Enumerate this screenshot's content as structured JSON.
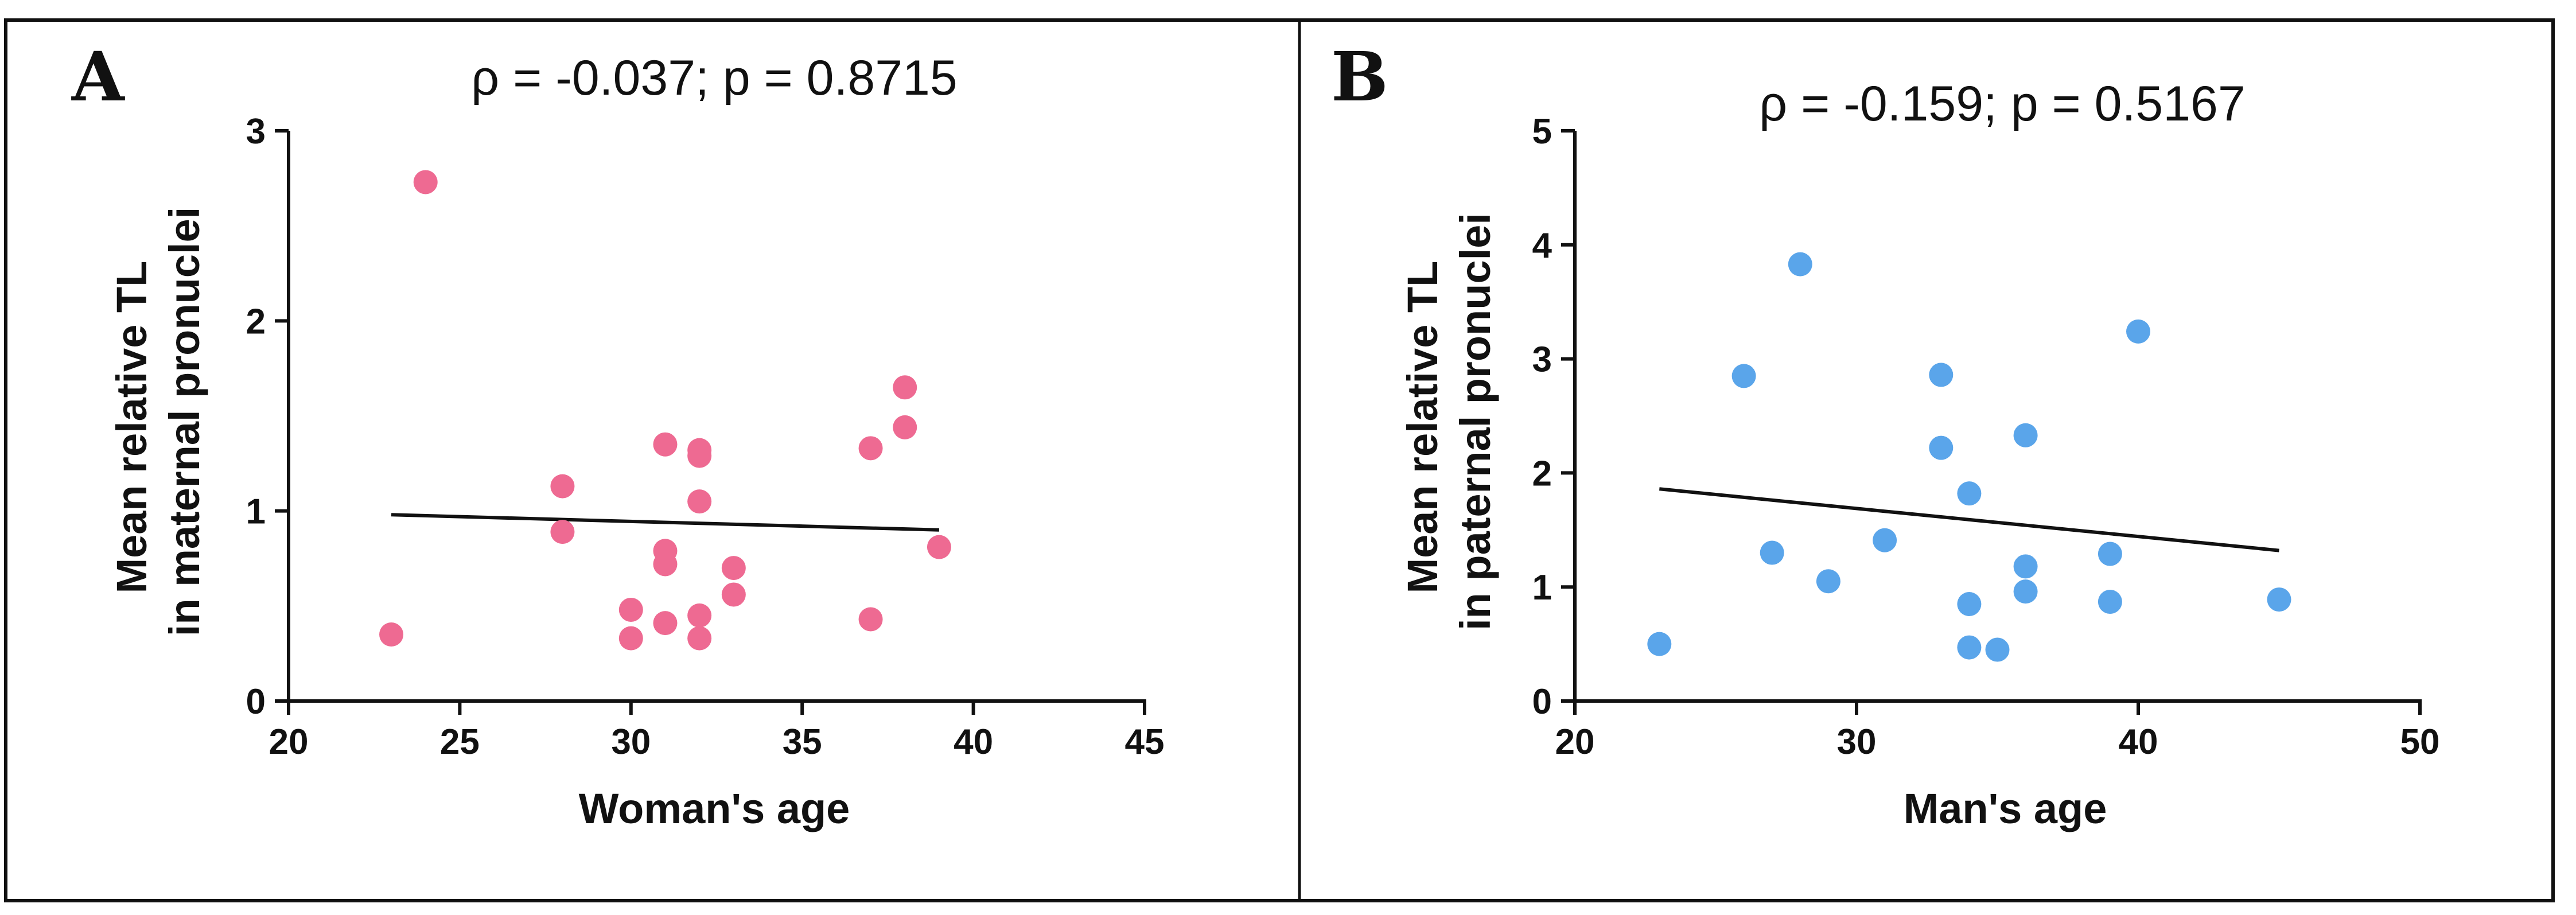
{
  "chart_data": [
    {
      "panel": "A",
      "type": "scatter",
      "title": "ρ = -0.037; p = 0.8715",
      "xlabel": "Woman's age",
      "ylabel": [
        "Mean relative TL",
        "in maternal pronuclei"
      ],
      "xlim": [
        20,
        45
      ],
      "ylim": [
        0,
        3
      ],
      "xticks": [
        20,
        25,
        30,
        35,
        40,
        45
      ],
      "yticks": [
        0,
        1,
        2,
        3
      ],
      "point_color": "#ee6a92",
      "line_color": "#111111",
      "points": [
        {
          "x": 23,
          "y": 0.35
        },
        {
          "x": 24,
          "y": 2.73
        },
        {
          "x": 28,
          "y": 1.13
        },
        {
          "x": 28,
          "y": 0.89
        },
        {
          "x": 30,
          "y": 0.48
        },
        {
          "x": 30,
          "y": 0.33
        },
        {
          "x": 31,
          "y": 1.35
        },
        {
          "x": 31,
          "y": 0.79
        },
        {
          "x": 31,
          "y": 0.72
        },
        {
          "x": 31,
          "y": 0.41
        },
        {
          "x": 32,
          "y": 1.32
        },
        {
          "x": 32,
          "y": 1.29
        },
        {
          "x": 32,
          "y": 1.05
        },
        {
          "x": 32,
          "y": 0.45
        },
        {
          "x": 32,
          "y": 0.33
        },
        {
          "x": 33,
          "y": 0.7
        },
        {
          "x": 33,
          "y": 0.56
        },
        {
          "x": 37,
          "y": 1.33
        },
        {
          "x": 37,
          "y": 0.43
        },
        {
          "x": 38,
          "y": 1.65
        },
        {
          "x": 38,
          "y": 1.44
        },
        {
          "x": 39,
          "y": 0.81
        }
      ],
      "fit_line": {
        "x": [
          23,
          39
        ],
        "y": [
          0.98,
          0.9
        ]
      }
    },
    {
      "panel": "B",
      "type": "scatter",
      "title": "ρ = -0.159; p = 0.5167",
      "xlabel": "Man's age",
      "ylabel": [
        "Mean relative TL",
        "in paternal pronuclei"
      ],
      "xlim": [
        20,
        50
      ],
      "ylim": [
        0,
        5
      ],
      "xticks": [
        20,
        30,
        40,
        50
      ],
      "yticks": [
        0,
        1,
        2,
        3,
        4,
        5
      ],
      "point_color": "#5aa5ea",
      "line_color": "#111111",
      "points": [
        {
          "x": 23,
          "y": 0.5
        },
        {
          "x": 26,
          "y": 2.85
        },
        {
          "x": 27,
          "y": 1.3
        },
        {
          "x": 28,
          "y": 3.83
        },
        {
          "x": 29,
          "y": 1.05
        },
        {
          "x": 31,
          "y": 1.41
        },
        {
          "x": 33,
          "y": 2.86
        },
        {
          "x": 33,
          "y": 2.22
        },
        {
          "x": 34,
          "y": 1.82
        },
        {
          "x": 34,
          "y": 0.85
        },
        {
          "x": 34,
          "y": 0.47
        },
        {
          "x": 35,
          "y": 0.45
        },
        {
          "x": 36,
          "y": 2.33
        },
        {
          "x": 36,
          "y": 1.18
        },
        {
          "x": 36,
          "y": 0.96
        },
        {
          "x": 39,
          "y": 1.29
        },
        {
          "x": 39,
          "y": 0.87
        },
        {
          "x": 40,
          "y": 3.24
        },
        {
          "x": 45,
          "y": 0.89
        }
      ],
      "fit_line": {
        "x": [
          23,
          45
        ],
        "y": [
          1.86,
          1.32
        ]
      }
    }
  ]
}
